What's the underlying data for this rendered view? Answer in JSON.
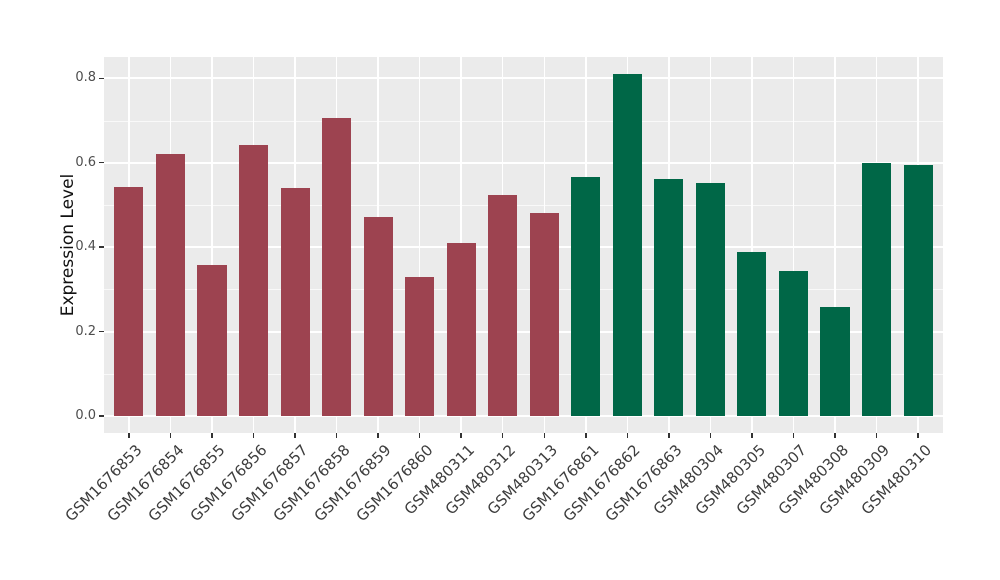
{
  "chart_data": {
    "type": "bar",
    "title": "",
    "xlabel": "",
    "ylabel": "Expression Level",
    "categories": [
      "GSM1676853",
      "GSM1676854",
      "GSM1676855",
      "GSM1676856",
      "GSM1676857",
      "GSM1676858",
      "GSM1676859",
      "GSM1676860",
      "GSM480311",
      "GSM480312",
      "GSM480313",
      "GSM1676861",
      "GSM1676862",
      "GSM1676863",
      "GSM480304",
      "GSM480305",
      "GSM480307",
      "GSM480308",
      "GSM480309",
      "GSM480310"
    ],
    "values": [
      0.542,
      0.62,
      0.358,
      0.642,
      0.54,
      0.705,
      0.471,
      0.328,
      0.41,
      0.523,
      0.48,
      0.565,
      0.81,
      0.562,
      0.551,
      0.389,
      0.344,
      0.259,
      0.6,
      0.595
    ],
    "bar_colors": [
      "#9D4350",
      "#9D4350",
      "#9D4350",
      "#9D4350",
      "#9D4350",
      "#9D4350",
      "#9D4350",
      "#9D4350",
      "#9D4350",
      "#9D4350",
      "#9D4350",
      "#006747",
      "#006747",
      "#006747",
      "#006747",
      "#006747",
      "#006747",
      "#006747",
      "#006747",
      "#006747"
    ],
    "group_colors": {
      "left_group": "#9D4350",
      "right_group": "#006747"
    },
    "ytick_labels": [
      "0.0",
      "0.2",
      "0.4",
      "0.6",
      "0.8"
    ],
    "ytick_values": [
      0,
      0.2,
      0.4,
      0.6,
      0.8
    ],
    "minor_gridlines": [
      0.1,
      0.3,
      0.5,
      0.7
    ],
    "ylim": [
      -0.0405,
      0.8505
    ],
    "grid": true,
    "legend_position": "none",
    "panel_background": "#EBEBEB",
    "grid_color": "#FFFFFF"
  }
}
